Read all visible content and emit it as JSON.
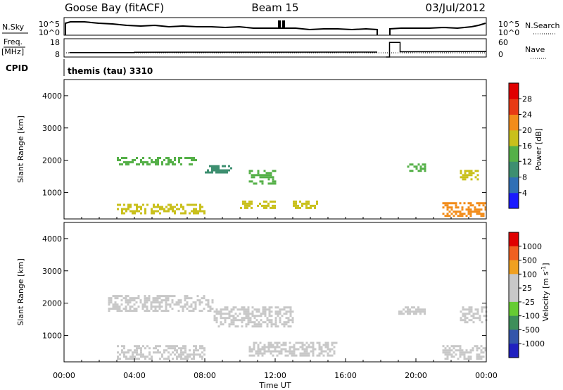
{
  "header": {
    "station": "Goose Bay (fitACF)",
    "beam": "Beam 15",
    "date": "03/Jul/2012"
  },
  "noise_panel": {
    "left_label": "N.Sky",
    "left_ticks": [
      "10^5",
      "10^0"
    ],
    "right_ticks": [
      "10^5",
      "10^0"
    ],
    "right_label": "N.Search"
  },
  "freq_panel": {
    "left_label_top": "Freq.",
    "left_label_bottom": "[MHz]",
    "left_ticks": [
      "18",
      "8"
    ],
    "right_ticks": [
      "60",
      "0"
    ],
    "right_label": "Nave",
    "trace": {
      "times_h": [
        0,
        0.3,
        0.3,
        4.0,
        4.0,
        17.8,
        17.8,
        18.3,
        18.3,
        18.5,
        18.5,
        19.1,
        19.1,
        24.0
      ],
      "values_mhz": [
        null,
        null,
        10.4,
        10.4,
        10.6,
        10.7,
        null,
        null,
        8.0,
        8.0,
        16.0,
        16.0,
        10.9,
        11.0
      ]
    }
  },
  "cpid": {
    "label": "CPID",
    "text": "themis (tau) 3310"
  },
  "x_axis": {
    "title": "Time UT",
    "ticks": [
      "00:00",
      "04:00",
      "08:00",
      "12:00",
      "16:00",
      "20:00",
      "00:00"
    ],
    "range_h": [
      0,
      24
    ]
  },
  "chart_data": [
    {
      "type": "heatmap",
      "name": "power",
      "ylabel": "Slant Range [km]",
      "ylim": [
        180,
        4500
      ],
      "yticks": [
        "1000",
        "2000",
        "3000",
        "4000"
      ],
      "colorbar": {
        "label": "Power [dB]",
        "ticks": [
          "4",
          "8",
          "12",
          "16",
          "20",
          "24",
          "28"
        ],
        "colors": [
          "#1a1aff",
          "#2f6fb5",
          "#3d8f70",
          "#55b048",
          "#c9c01c",
          "#f28c1a",
          "#e83a14",
          "#e00000"
        ]
      },
      "regions": [
        {
          "t": [
            3.0,
            7.5
          ],
          "r": [
            1850,
            2100
          ],
          "v": 14
        },
        {
          "t": [
            8.0,
            9.5
          ],
          "r": [
            1600,
            1850
          ],
          "v": 10
        },
        {
          "t": [
            10.5,
            12.0
          ],
          "r": [
            1300,
            1700
          ],
          "v": 12
        },
        {
          "t": [
            3.0,
            8.0
          ],
          "r": [
            380,
            650
          ],
          "v": 16
        },
        {
          "t": [
            10.0,
            12.0
          ],
          "r": [
            500,
            750
          ],
          "v": 18
        },
        {
          "t": [
            13.0,
            14.5
          ],
          "r": [
            500,
            750
          ],
          "v": 16
        },
        {
          "t": [
            19.5,
            20.5
          ],
          "r": [
            1650,
            1900
          ],
          "v": 15
        },
        {
          "t": [
            21.5,
            24.0
          ],
          "r": [
            250,
            700
          ],
          "v": 22
        },
        {
          "t": [
            22.5,
            23.5
          ],
          "r": [
            1400,
            1700
          ],
          "v": 16
        }
      ]
    },
    {
      "type": "heatmap",
      "name": "velocity",
      "ylabel": "Slant Range [km]",
      "ylim": [
        180,
        4500
      ],
      "yticks": [
        "1000",
        "2000",
        "3000",
        "4000"
      ],
      "colorbar": {
        "label": "Velocity [m s^-1]",
        "ticks": [
          "1000",
          "500",
          "100",
          "25",
          "-25",
          "-100",
          "-500",
          "-1000"
        ],
        "colors": [
          "#2020c0",
          "#3355aa",
          "#3d8f5a",
          "#66cc33",
          "#c8c8c8",
          "#c8c8c8",
          "#f0a020",
          "#f06020",
          "#e00000"
        ]
      },
      "regions": [
        {
          "t": [
            2.5,
            8.5
          ],
          "r": [
            1750,
            2250
          ],
          "v": 0
        },
        {
          "t": [
            8.5,
            13.0
          ],
          "r": [
            1300,
            1900
          ],
          "v": 0
        },
        {
          "t": [
            3.0,
            8.0
          ],
          "r": [
            250,
            700
          ],
          "v": 0
        },
        {
          "t": [
            10.5,
            15.5
          ],
          "r": [
            400,
            800
          ],
          "v": 0
        },
        {
          "t": [
            19.0,
            20.5
          ],
          "r": [
            1650,
            1900
          ],
          "v": 0
        },
        {
          "t": [
            21.5,
            24.0
          ],
          "r": [
            250,
            700
          ],
          "v": 0
        },
        {
          "t": [
            22.5,
            24.0
          ],
          "r": [
            1400,
            1900
          ],
          "v": 0
        }
      ]
    }
  ]
}
